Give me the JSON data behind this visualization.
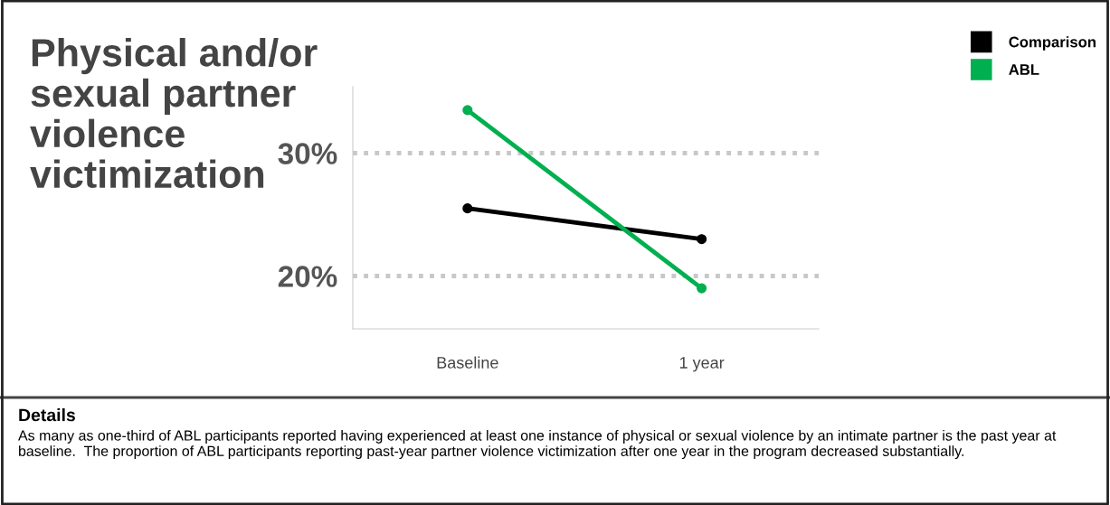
{
  "chart_data": {
    "type": "line",
    "title": "Physical and/or sexual partner violence victimization",
    "categories": [
      "Baseline",
      "1 year"
    ],
    "series": [
      {
        "name": "Comparison",
        "color": "#000000",
        "values": [
          25.5,
          23
        ]
      },
      {
        "name": "ABL",
        "color": "#00b050",
        "values": [
          33.5,
          19
        ]
      }
    ],
    "ylim": [
      15.7,
      35.4
    ],
    "yticks": [
      {
        "value": 20,
        "label": "20%"
      },
      {
        "value": 30,
        "label": "30%"
      }
    ],
    "grid": "y",
    "legend": "top right",
    "marker": "circle",
    "line_style": "solid",
    "annotations": [
      "Details",
      "As many as one-third of ABL participants reported having experienced at least one instance of physical or sexual violence by an intimate partner is the past year at baseline.  The proportion of ABL participants reporting past-year partner violence victimization after one year in the program decreased substantially."
    ]
  }
}
